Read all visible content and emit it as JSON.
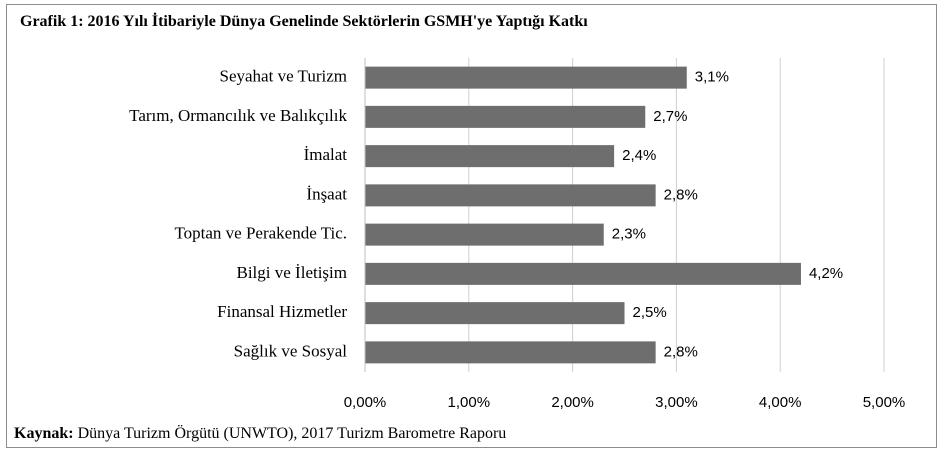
{
  "chart_data": {
    "type": "bar",
    "orientation": "horizontal",
    "title": "Grafik 1: 2016 Yılı İtibariyle Dünya Genelinde Sektörlerin GSMH'ye Yaptığı Katkı",
    "categories": [
      "Seyahat ve Turizm",
      "Tarım, Ormancılık ve Balıkçılık",
      "İmalat",
      "İnşaat",
      "Toptan ve Perakende Tic.",
      "Bilgi ve İletişim",
      "Finansal Hizmetler",
      "Sağlık ve Sosyal"
    ],
    "values": [
      3.1,
      2.7,
      2.4,
      2.8,
      2.3,
      4.2,
      2.5,
      2.8
    ],
    "value_labels": [
      "3,1%",
      "2,7%",
      "2,4%",
      "2,8%",
      "2,3%",
      "4,2%",
      "2,5%",
      "2,8%"
    ],
    "color": "#6e6e6e",
    "xlim": [
      0,
      5
    ],
    "xticks": [
      {
        "value": 0,
        "label": "0,00%"
      },
      {
        "value": 1,
        "label": "1,00%"
      },
      {
        "value": 2,
        "label": "2,00%"
      },
      {
        "value": 3,
        "label": "3,00%"
      },
      {
        "value": 4,
        "label": "4,00%"
      },
      {
        "value": 5,
        "label": "5,00%"
      }
    ],
    "grid": true,
    "source": {
      "label": "Kaynak:",
      "text": "Dünya Turizm Örgütü (UNWTO), 2017 Turizm Barometre Raporu"
    }
  }
}
